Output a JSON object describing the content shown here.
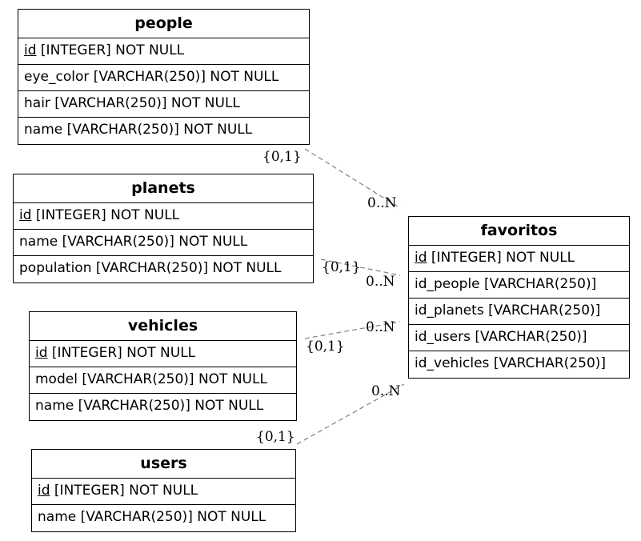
{
  "entities": {
    "people": {
      "name": "people",
      "pk": "id",
      "pk_rest": " [INTEGER] NOT NULL",
      "attrs": [
        "eye_color [VARCHAR(250)] NOT NULL",
        "hair [VARCHAR(250)] NOT NULL",
        "name [VARCHAR(250)] NOT NULL"
      ]
    },
    "planets": {
      "name": "planets",
      "pk": "id",
      "pk_rest": " [INTEGER] NOT NULL",
      "attrs": [
        "name [VARCHAR(250)] NOT NULL",
        "population [VARCHAR(250)] NOT NULL"
      ]
    },
    "vehicles": {
      "name": "vehicles",
      "pk": "id",
      "pk_rest": " [INTEGER] NOT NULL",
      "attrs": [
        "model [VARCHAR(250)] NOT NULL",
        "name [VARCHAR(250)] NOT NULL"
      ]
    },
    "users": {
      "name": "users",
      "pk": "id",
      "pk_rest": " [INTEGER] NOT NULL",
      "attrs": [
        "name [VARCHAR(250)] NOT NULL"
      ]
    },
    "favoritos": {
      "name": "favoritos",
      "pk": "id",
      "pk_rest": " [INTEGER] NOT NULL",
      "attrs": [
        "id_people [VARCHAR(250)]",
        "id_planets [VARCHAR(250)]",
        "id_users [VARCHAR(250)]",
        "id_vehicles [VARCHAR(250)]"
      ]
    }
  },
  "relationships": [
    {
      "from": "people",
      "to": "favoritos",
      "from_card": "{0,1}",
      "to_card": "0..N"
    },
    {
      "from": "planets",
      "to": "favoritos",
      "from_card": "{0,1}",
      "to_card": "0..N"
    },
    {
      "from": "vehicles",
      "to": "favoritos",
      "from_card": "{0,1}",
      "to_card": "0..N"
    },
    {
      "from": "users",
      "to": "favoritos",
      "from_card": "{0,1}",
      "to_card": "0..N"
    }
  ]
}
